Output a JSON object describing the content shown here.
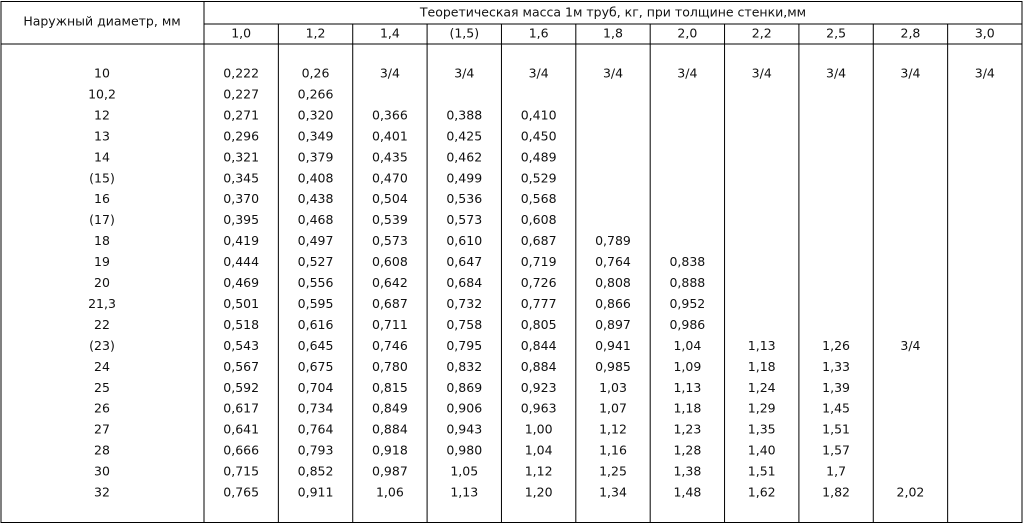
{
  "header": {
    "diameter": "Наружный диаметр, мм",
    "group": "Теоретическая масса 1м труб, кг, при толщине стенки,мм",
    "thicknesses": [
      "1,0",
      "1,2",
      "1,4",
      "(1,5)",
      "1,6",
      "1,8",
      "2,0",
      "2,2",
      "2,5",
      "2,8",
      "3,0"
    ]
  },
  "table": {
    "rows": [
      {
        "diameter": "10",
        "cells": [
          "0,222",
          "0,26",
          "3/4",
          "3/4",
          "3/4",
          "3/4",
          "3/4",
          "3/4",
          "3/4",
          "3/4",
          "3/4"
        ]
      },
      {
        "diameter": "10,2",
        "cells": [
          "0,227",
          "0,266"
        ]
      },
      {
        "diameter": "12",
        "cells": [
          "0,271",
          "0,320",
          "0,366",
          "0,388",
          "0,410"
        ]
      },
      {
        "diameter": "13",
        "cells": [
          "0,296",
          "0,349",
          "0,401",
          "0,425",
          "0,450"
        ]
      },
      {
        "diameter": "14",
        "cells": [
          "0,321",
          "0,379",
          "0,435",
          "0,462",
          "0,489"
        ]
      },
      {
        "diameter": "(15)",
        "cells": [
          "0,345",
          "0,408",
          "0,470",
          "0,499",
          "0,529"
        ]
      },
      {
        "diameter": "16",
        "cells": [
          "0,370",
          "0,438",
          "0,504",
          "0,536",
          "0,568"
        ]
      },
      {
        "diameter": "(17)",
        "cells": [
          "0,395",
          "0,468",
          "0,539",
          "0,573",
          "0,608"
        ]
      },
      {
        "diameter": "18",
        "cells": [
          "0,419",
          "0,497",
          "0,573",
          "0,610",
          "0,687",
          "0,789"
        ]
      },
      {
        "diameter": "19",
        "cells": [
          "0,444",
          "0,527",
          "0,608",
          "0,647",
          "0,719",
          "0,764",
          "0,838"
        ]
      },
      {
        "diameter": "20",
        "cells": [
          "0,469",
          "0,556",
          "0,642",
          "0,684",
          "0,726",
          "0,808",
          "0,888"
        ]
      },
      {
        "diameter": "21,3",
        "cells": [
          "0,501",
          "0,595",
          "0,687",
          "0,732",
          "0,777",
          "0,866",
          "0,952"
        ]
      },
      {
        "diameter": "22",
        "cells": [
          "0,518",
          "0,616",
          "0,711",
          "0,758",
          "0,805",
          "0,897",
          "0,986"
        ]
      },
      {
        "diameter": "(23)",
        "cells": [
          "0,543",
          "0,645",
          "0,746",
          "0,795",
          "0,844",
          "0,941",
          "1,04",
          "1,13",
          "1,26",
          "3/4"
        ]
      },
      {
        "diameter": "24",
        "cells": [
          "0,567",
          "0,675",
          "0,780",
          "0,832",
          "0,884",
          "0,985",
          "1,09",
          "1,18",
          "1,33"
        ]
      },
      {
        "diameter": "25",
        "cells": [
          "0,592",
          "0,704",
          "0,815",
          "0,869",
          "0,923",
          "1,03",
          "1,13",
          "1,24",
          "1,39"
        ]
      },
      {
        "diameter": "26",
        "cells": [
          "0,617",
          "0,734",
          "0,849",
          "0,906",
          "0,963",
          "1,07",
          "1,18",
          "1,29",
          "1,45"
        ]
      },
      {
        "diameter": "27",
        "cells": [
          "0,641",
          "0,764",
          "0,884",
          "0,943",
          "1,00",
          "1,12",
          "1,23",
          "1,35",
          "1,51"
        ]
      },
      {
        "diameter": "28",
        "cells": [
          "0,666",
          "0,793",
          "0,918",
          "0,980",
          "1,04",
          "1,16",
          "1,28",
          "1,40",
          "1,57"
        ]
      },
      {
        "diameter": "30",
        "cells": [
          "0,715",
          "0,852",
          "0,987",
          "1,05",
          "1,12",
          "1,25",
          "1,38",
          "1,51",
          "1,7"
        ]
      },
      {
        "diameter": "32",
        "cells": [
          "0,765",
          "0,911",
          "1,06",
          "1,13",
          "1,20",
          "1,34",
          "1,48",
          "1,62",
          "1,82",
          "2,02"
        ]
      }
    ]
  }
}
